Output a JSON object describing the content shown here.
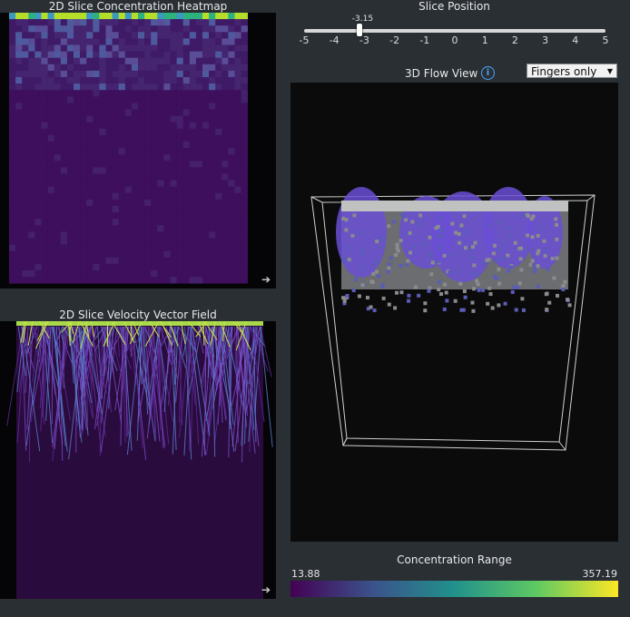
{
  "heatmap": {
    "title": "2D Slice Concentration Heatmap",
    "expand_icon": "arrow-right-icon"
  },
  "velocity": {
    "title": "2D Slice Velocity Vector Field",
    "expand_icon": "arrow-right-icon"
  },
  "slice": {
    "title": "Slice Position",
    "value": -3.15,
    "value_label": "-3.15",
    "min": -5,
    "max": 5,
    "ticks": [
      "-5",
      "-4",
      "-3",
      "-2",
      "-1",
      "0",
      "1",
      "2",
      "3",
      "4",
      "5"
    ]
  },
  "flow": {
    "title": "3D Flow View",
    "info_icon": "info-icon",
    "filter_value": "Fingers only"
  },
  "range": {
    "title": "Concentration Range",
    "min": "13.88",
    "max": "357.19"
  },
  "colors": {
    "panel_bg": "#2a2f34",
    "view_bg": "#0b0b0c",
    "low": "#440154",
    "high": "#fde725"
  }
}
